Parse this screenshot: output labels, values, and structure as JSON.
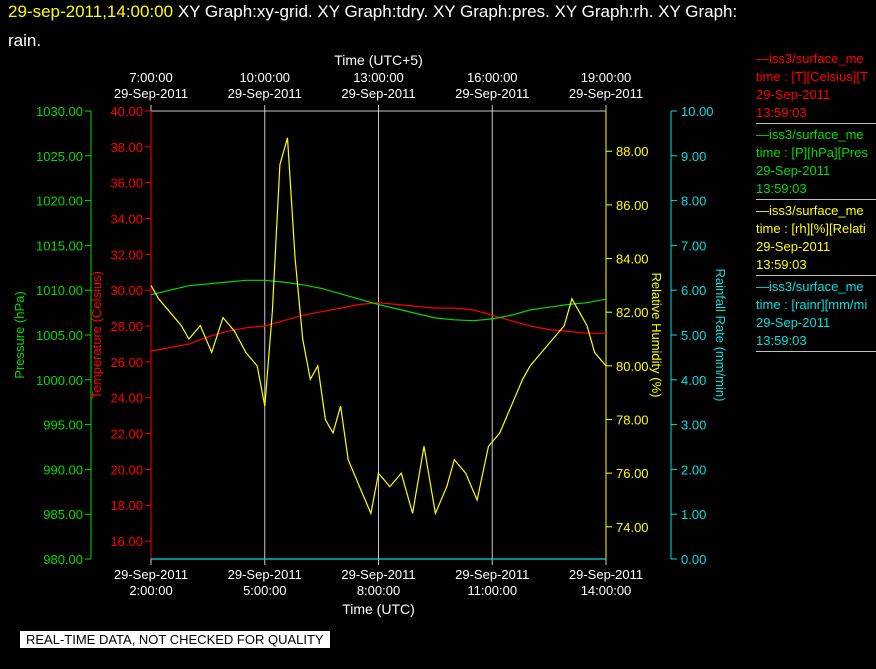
{
  "header": {
    "timestamp": "29-sep-2011,14:00:00",
    "title_rest": " XY Graph:xy-grid.  XY Graph:tdry.  XY Graph:pres.  XY Graph:rh.  XY Graph:",
    "title_line2": "rain."
  },
  "colors": {
    "temperature": "#ff0000",
    "pressure": "#00dd00",
    "humidity": "#ffff00",
    "rainfall": "#00e0e0",
    "grid": "#c8c8c8",
    "background": "#000000"
  },
  "legend": [
    {
      "line1": "—iss3/surface_me",
      "line2": "time : [T][Celsius][T",
      "date": "29-Sep-2011",
      "time": "13:59:03",
      "color": "#ff0000"
    },
    {
      "line1": "—iss3/surface_me",
      "line2": "time : [P][hPa][Pres",
      "date": "29-Sep-2011",
      "time": "13:59:03",
      "color": "#00dd00"
    },
    {
      "line1": "—iss3/surface_me",
      "line2": "time : [rh][%][Relati",
      "date": "29-Sep-2011",
      "time": "13:59:03",
      "color": "#ffff00"
    },
    {
      "line1": "—iss3/surface_me",
      "line2": "time : [rainr][mm/mi",
      "date": "29-Sep-2011",
      "time": "13:59:03",
      "color": "#00e0e0"
    }
  ],
  "footer": "REAL-TIME DATA, NOT CHECKED FOR QUALITY",
  "chart_data": {
    "type": "line",
    "xlabel_bottom": "Time (UTC)",
    "xlabel_top": "Time (UTC+5)",
    "x_ticks_bottom": [
      {
        "date": "29-Sep-2011",
        "time": "2:00:00"
      },
      {
        "date": "29-Sep-2011",
        "time": "5:00:00"
      },
      {
        "date": "29-Sep-2011",
        "time": "8:00:00"
      },
      {
        "date": "29-Sep-2011",
        "time": "11:00:00"
      },
      {
        "date": "29-Sep-2011",
        "time": "14:00:00"
      }
    ],
    "x_ticks_top": [
      {
        "time": "7:00:00",
        "date": "29-Sep-2011"
      },
      {
        "time": "10:00:00",
        "date": "29-Sep-2011"
      },
      {
        "time": "13:00:00",
        "date": "29-Sep-2011"
      },
      {
        "time": "16:00:00",
        "date": "29-Sep-2011"
      },
      {
        "time": "19:00:00",
        "date": "29-Sep-2011"
      }
    ],
    "x_range_hours_utc": [
      2,
      14
    ],
    "grid": true,
    "axes": {
      "pressure": {
        "label": "Pressure (hPa)",
        "range": [
          980,
          1030
        ],
        "ticks": [
          "980.00",
          "985.00",
          "990.00",
          "995.00",
          "1000.00",
          "1005.00",
          "1010.00",
          "1015.00",
          "1020.00",
          "1025.00",
          "1030.00"
        ]
      },
      "temperature": {
        "label": "Temperature (Celsius)",
        "range": [
          15,
          40
        ],
        "ticks": [
          "16.00",
          "18.00",
          "20.00",
          "22.00",
          "24.00",
          "26.00",
          "28.00",
          "30.00",
          "32.00",
          "34.00",
          "36.00",
          "38.00",
          "40.00"
        ]
      },
      "humidity": {
        "label": "Relative Humidity (%)",
        "range": [
          72.8,
          89.5
        ],
        "ticks": [
          "74.00",
          "76.00",
          "78.00",
          "80.00",
          "82.00",
          "84.00",
          "86.00",
          "88.00"
        ]
      },
      "rainfall": {
        "label": "Rainfall Rate (mm/min)",
        "range": [
          0,
          10
        ],
        "ticks": [
          "0.00",
          "1.00",
          "2.00",
          "3.00",
          "4.00",
          "5.00",
          "6.00",
          "7.00",
          "8.00",
          "9.00",
          "10.00"
        ]
      }
    },
    "series": [
      {
        "name": "iss3/surface_me time : [T][Celsius]",
        "axis": "temperature",
        "x": [
          2.0,
          3.0,
          3.5,
          4.0,
          4.5,
          5.0,
          5.5,
          6.0,
          6.5,
          7.0,
          7.5,
          8.0,
          8.5,
          9.0,
          9.5,
          10.0,
          10.5,
          11.0,
          11.5,
          12.0,
          12.5,
          13.0,
          13.5,
          14.0
        ],
        "y": [
          26.6,
          27.0,
          27.4,
          27.7,
          27.9,
          28.0,
          28.3,
          28.6,
          28.8,
          29.0,
          29.2,
          29.3,
          29.2,
          29.1,
          29.0,
          29.0,
          28.9,
          28.6,
          28.3,
          28.0,
          27.8,
          27.7,
          27.6,
          27.6
        ]
      },
      {
        "name": "iss3/surface_me time : [P][hPa]",
        "axis": "pressure",
        "x": [
          2.0,
          3.0,
          4.0,
          4.5,
          5.0,
          5.5,
          6.0,
          6.5,
          7.0,
          7.5,
          8.0,
          8.5,
          9.0,
          9.5,
          10.0,
          10.5,
          11.0,
          11.5,
          12.0,
          12.5,
          13.0,
          13.5,
          14.0
        ],
        "y": [
          1009.5,
          1010.5,
          1010.9,
          1011.1,
          1011.1,
          1010.9,
          1010.6,
          1010.2,
          1009.6,
          1009.0,
          1008.4,
          1007.9,
          1007.4,
          1006.9,
          1006.7,
          1006.6,
          1006.8,
          1007.2,
          1007.8,
          1008.1,
          1008.4,
          1008.6,
          1009.0
        ]
      },
      {
        "name": "iss3/surface_me time : [rh][%]",
        "axis": "humidity",
        "x": [
          2.0,
          2.2,
          2.5,
          2.8,
          3.0,
          3.3,
          3.6,
          3.9,
          4.2,
          4.5,
          4.8,
          5.0,
          5.2,
          5.4,
          5.6,
          5.8,
          6.0,
          6.2,
          6.4,
          6.6,
          6.8,
          7.0,
          7.2,
          7.5,
          7.8,
          8.0,
          8.3,
          8.6,
          8.9,
          9.2,
          9.5,
          9.8,
          10.0,
          10.3,
          10.6,
          10.9,
          11.2,
          11.5,
          11.8,
          12.0,
          12.3,
          12.6,
          12.9,
          13.1,
          13.3,
          13.5,
          13.7,
          14.0
        ],
        "y": [
          83.0,
          82.5,
          82.0,
          81.5,
          81.0,
          81.5,
          80.5,
          81.8,
          81.3,
          80.5,
          80.0,
          78.5,
          82.0,
          87.5,
          88.5,
          84.0,
          81.0,
          79.5,
          80.0,
          78.0,
          77.5,
          78.5,
          76.5,
          75.5,
          74.5,
          76.0,
          75.5,
          76.0,
          74.5,
          77.0,
          74.5,
          75.5,
          76.5,
          76.0,
          75.0,
          77.0,
          77.5,
          78.5,
          79.5,
          80.0,
          80.5,
          81.0,
          81.5,
          82.5,
          82.0,
          81.5,
          80.5,
          80.0
        ]
      },
      {
        "name": "iss3/surface_me time : [rainr][mm/min]",
        "axis": "rainfall",
        "x": [
          2.0,
          14.0
        ],
        "y": [
          0.0,
          0.0
        ]
      }
    ]
  }
}
